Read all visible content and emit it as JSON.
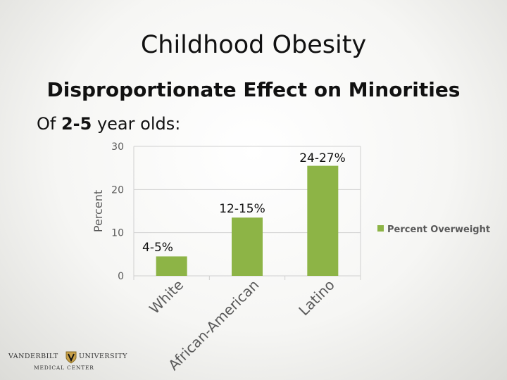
{
  "slide": {
    "title": "Childhood Obesity",
    "subtitle": "Disproportionate Effect on Minorities",
    "intro_prefix": "Of ",
    "intro_bold": "2-5",
    "intro_suffix": " year olds:"
  },
  "logo": {
    "left_word": "VANDERBILT",
    "right_word": "UNIVERSITY",
    "bottom_text": "MEDICAL CENTER"
  },
  "chart_data": {
    "type": "bar",
    "categories": [
      "White",
      "African-American",
      "Latino"
    ],
    "series": [
      {
        "name": "Percent Overweight",
        "values": [
          4.5,
          13.5,
          25.5
        ],
        "color": "#8db446"
      }
    ],
    "data_labels": [
      "4-5%",
      "12-15%",
      "24-27%"
    ],
    "xlabel": "",
    "ylabel": "Percent",
    "ylim": [
      0,
      30
    ],
    "yticks": [
      0,
      10,
      20,
      30
    ],
    "grid": true,
    "legend": "right"
  }
}
